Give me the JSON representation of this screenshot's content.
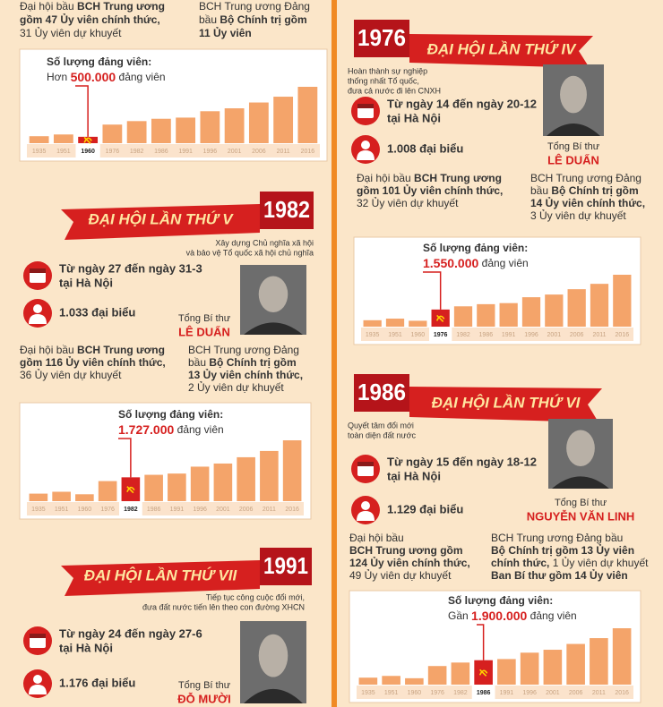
{
  "top_fragment": {
    "left_text": [
      [
        {
          "text": "Đại hội bầu ",
          "bold": false
        },
        {
          "text": "BCH Trung ương",
          "bold": true
        }
      ],
      [
        {
          "text": "gồm 47 Ủy viên chính thức,",
          "bold": true
        }
      ],
      [
        {
          "text": "31 Ủy viên dự khuyết",
          "bold": false
        }
      ]
    ],
    "right_text": [
      [
        {
          "text": "BCH Trung ương Đảng",
          "bold": false
        }
      ],
      [
        {
          "text": "bầu ",
          "bold": false
        },
        {
          "text": "Bộ Chính trị gồm",
          "bold": true
        }
      ],
      [
        {
          "text": "11 Ủy viên",
          "bold": true
        }
      ]
    ],
    "chart": {
      "heading": "Số lượng đảng viên:",
      "prefix": "Hơn",
      "number": "500.000",
      "suffix": "đảng viên",
      "categories": [
        "1935",
        "1951",
        "1960",
        "1976",
        "1982",
        "1986",
        "1991",
        "1996",
        "2001",
        "2006",
        "2011",
        "2016"
      ],
      "values": [
        12,
        15,
        11,
        32,
        38,
        42,
        44,
        55,
        60,
        70,
        80,
        97
      ],
      "highlight": "1960"
    }
  },
  "congresses": [
    {
      "year": "1976",
      "title": "ĐẠI HỘI LẦN THỨ IV",
      "slogan": [
        "Hoàn thành sự nghiệp",
        "thống nhất Tổ quốc,",
        "đưa cả nước đi lên CNXH"
      ],
      "date": [
        "Từ ngày 14 đến ngày 20-12",
        "tại Hà Nội"
      ],
      "delegates": "1.008 đại biểu",
      "secretary_label": "Tổng Bí thư",
      "secretary_name": "LÊ DUẨN",
      "left_text": [
        [
          {
            "text": "Đại hội bầu ",
            "bold": false
          },
          {
            "text": "BCH Trung ương",
            "bold": true
          }
        ],
        [
          {
            "text": "gồm 101 Ủy viên chính thức,",
            "bold": true
          }
        ],
        [
          {
            "text": "32 Ủy viên dự khuyết",
            "bold": false
          }
        ]
      ],
      "right_text": [
        [
          {
            "text": "BCH Trung ương Đảng",
            "bold": false
          }
        ],
        [
          {
            "text": "bầu ",
            "bold": false
          },
          {
            "text": "Bộ Chính trị gồm",
            "bold": true
          }
        ],
        [
          {
            "text": "14 Ủy viên chính thức,",
            "bold": true
          }
        ],
        [
          {
            "text": "3 Ủy viên dự khuyết",
            "bold": false
          }
        ]
      ],
      "chart": {
        "heading": "Số lượng đảng viên:",
        "number": "1.550.000",
        "suffix": "đảng viên",
        "categories": [
          "1935",
          "1951",
          "1960",
          "1976",
          "1982",
          "1986",
          "1991",
          "1996",
          "2001",
          "2006",
          "2011",
          "2016"
        ],
        "values": [
          12,
          15,
          11,
          32,
          38,
          42,
          44,
          55,
          60,
          70,
          80,
          97
        ],
        "highlight": "1976"
      }
    },
    {
      "year": "1982",
      "title": "ĐẠI HỘI LẦN THỨ V",
      "slogan": [
        "Xây dựng Chủ nghĩa xã hội",
        "và bảo vệ Tổ quốc xã hội chủ nghĩa"
      ],
      "date": [
        "Từ ngày 27 đến ngày 31-3",
        "tại Hà Nội"
      ],
      "delegates": "1.033 đại biểu",
      "secretary_label": "Tổng Bí thư",
      "secretary_name": "LÊ DUẨN",
      "left_text": [
        [
          {
            "text": "Đại hội bầu ",
            "bold": false
          },
          {
            "text": "BCH Trung ương",
            "bold": true
          }
        ],
        [
          {
            "text": "gồm 116 Ủy viên chính thức,",
            "bold": true
          }
        ],
        [
          {
            "text": "36 Ủy viên dự khuyết",
            "bold": false
          }
        ]
      ],
      "right_text": [
        [
          {
            "text": "BCH Trung ương Đảng",
            "bold": false
          }
        ],
        [
          {
            "text": "bầu ",
            "bold": false
          },
          {
            "text": "Bộ Chính trị gồm",
            "bold": true
          }
        ],
        [
          {
            "text": "13 Ủy viên chính thức,",
            "bold": true
          }
        ],
        [
          {
            "text": "2 Ủy viên dự khuyết",
            "bold": false
          }
        ]
      ],
      "chart": {
        "heading": "Số lượng đảng viên:",
        "number": "1.727.000",
        "suffix": "đảng viên",
        "categories": [
          "1935",
          "1951",
          "1960",
          "1976",
          "1982",
          "1986",
          "1991",
          "1996",
          "2001",
          "2006",
          "2011",
          "2016"
        ],
        "values": [
          12,
          15,
          11,
          32,
          38,
          42,
          44,
          55,
          60,
          70,
          80,
          97
        ],
        "highlight": "1982"
      }
    },
    {
      "year": "1986",
      "title": "ĐẠI HỘI LẦN THỨ VI",
      "slogan": [
        "Quyết tâm đổi mới",
        "toàn diện đất nước"
      ],
      "date": [
        "Từ ngày 15 đến ngày 18-12",
        "tại Hà Nội"
      ],
      "delegates": "1.129 đại biểu",
      "secretary_label": "Tổng Bí thư",
      "secretary_name": "NGUYỄN VĂN LINH",
      "left_text": [
        [
          {
            "text": "Đại hội bầu",
            "bold": false
          }
        ],
        [
          {
            "text": "BCH Trung ương gồm",
            "bold": true
          }
        ],
        [
          {
            "text": "124 Ủy viên chính thức,",
            "bold": true
          }
        ],
        [
          {
            "text": "49 Ủy viên dự khuyết",
            "bold": false
          }
        ]
      ],
      "right_text": [
        [
          {
            "text": "BCH Trung ương Đảng bầu",
            "bold": false
          }
        ],
        [
          {
            "text": "Bộ Chính trị gồm 13 Ủy viên",
            "bold": true
          }
        ],
        [
          {
            "text": "chính thức,",
            "bold": true
          },
          {
            "text": " 1 Ủy viên dự khuyết",
            "bold": false
          }
        ],
        [
          {
            "text": "Ban Bí thư gồm 14 Ủy viên",
            "bold": true
          }
        ]
      ],
      "chart": {
        "heading": "Số lượng đảng viên:",
        "prefix": "Gần",
        "number": "1.900.000",
        "suffix": "đảng viên",
        "categories": [
          "1935",
          "1951",
          "1960",
          "1976",
          "1982",
          "1986",
          "1991",
          "1996",
          "2001",
          "2006",
          "2011",
          "2016"
        ],
        "values": [
          12,
          15,
          11,
          32,
          38,
          42,
          44,
          55,
          60,
          70,
          80,
          97
        ],
        "highlight": "1986"
      }
    },
    {
      "year": "1991",
      "title": "ĐẠI HỘI LẦN THỨ VII",
      "slogan": [
        "Tiếp tục công cuộc đổi mới,",
        "đưa đất nước tiến lên theo con đường XHCN"
      ],
      "date": [
        "Từ ngày 24 đến ngày 27-6",
        "tại Hà Nội"
      ],
      "delegates": "1.176 đại biểu",
      "secretary_label": "Tổng Bí thư",
      "secretary_name": "ĐỖ MƯỜI"
    }
  ]
}
